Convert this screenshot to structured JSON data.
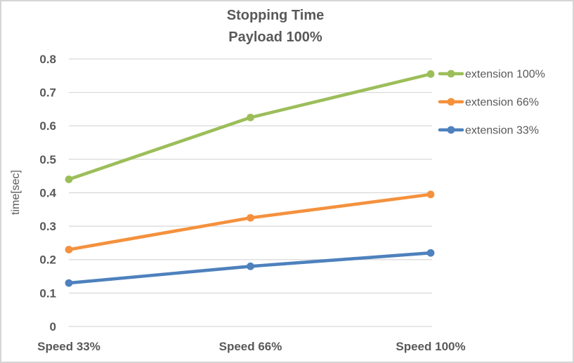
{
  "frame": {
    "border_color": "#d5d5d5",
    "background_color": "#ffffff",
    "text_color": "#595959"
  },
  "chart_data": {
    "type": "line",
    "title": "Stopping Time",
    "subtitle": "Payload 100%",
    "ylabel": "time[sec]",
    "xlabel": "",
    "categories": [
      "Speed 33%",
      "Speed 66%",
      "Speed 100%"
    ],
    "series": [
      {
        "name": "extension 100%",
        "color": "#9CBE5A",
        "values": [
          0.44,
          0.625,
          0.755
        ]
      },
      {
        "name": "extension 66%",
        "color": "#F4913D",
        "values": [
          0.23,
          0.325,
          0.395
        ]
      },
      {
        "name": "extension 33%",
        "color": "#4E81BD",
        "values": [
          0.13,
          0.18,
          0.22
        ]
      }
    ],
    "ylim": [
      0,
      0.8
    ],
    "ytick_step": 0.1,
    "ytick_labels": [
      "0",
      "0.1",
      "0.2",
      "0.3",
      "0.4",
      "0.5",
      "0.6",
      "0.7",
      "0.8"
    ],
    "grid": "horizontal",
    "gridline_color": "#D9D9D9",
    "legend_position": "right",
    "marker": "circle"
  }
}
